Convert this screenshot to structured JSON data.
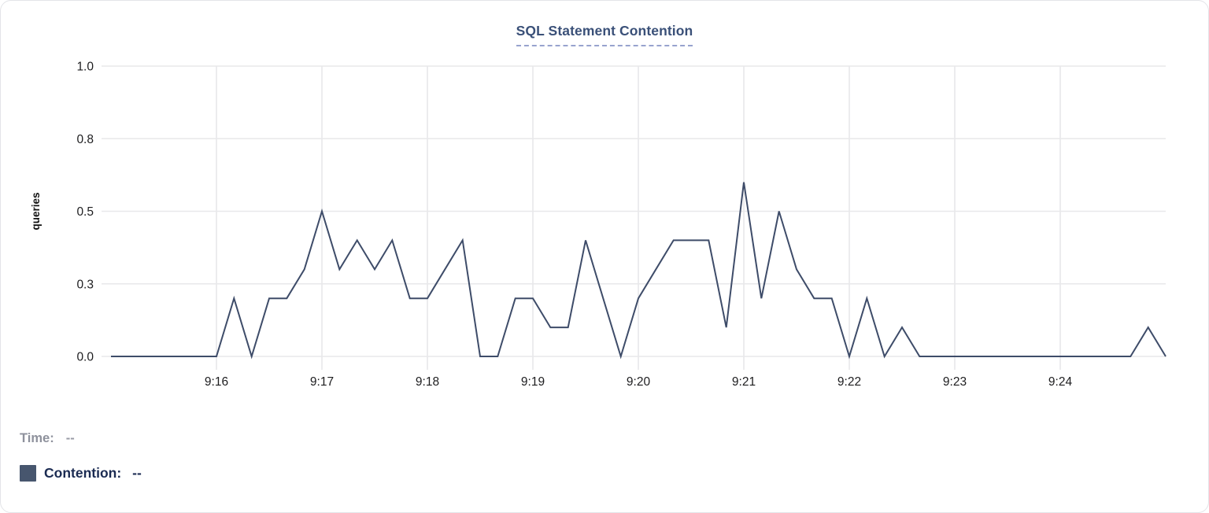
{
  "title": "SQL Statement Contention",
  "legend": {
    "time_label": "Time:",
    "time_value": "--",
    "series_label": "Contention:",
    "series_value": "--",
    "swatch_color": "#47566e"
  },
  "chart_data": {
    "type": "line",
    "title": "SQL Statement Contention",
    "xlabel": "",
    "ylabel": "queries",
    "ylim": [
      0,
      1
    ],
    "grid": true,
    "legend_position": "bottom-left",
    "y_ticks": [
      {
        "value": 0,
        "label": "0.0"
      },
      {
        "value": 0.25,
        "label": "0.3"
      },
      {
        "value": 0.5,
        "label": "0.5"
      },
      {
        "value": 0.75,
        "label": "0.8"
      },
      {
        "value": 1,
        "label": "1.0"
      }
    ],
    "x_tick_labels": [
      "9:16",
      "9:17",
      "9:18",
      "9:19",
      "9:20",
      "9:21",
      "9:22",
      "9:23",
      "9:24"
    ],
    "x_range": [
      "9:15:00",
      "9:25:00"
    ],
    "x": [
      "9:15:00",
      "9:15:10",
      "9:15:20",
      "9:15:30",
      "9:15:40",
      "9:15:50",
      "9:16:00",
      "9:16:10",
      "9:16:20",
      "9:16:30",
      "9:16:40",
      "9:16:50",
      "9:17:00",
      "9:17:10",
      "9:17:20",
      "9:17:30",
      "9:17:40",
      "9:17:50",
      "9:18:00",
      "9:18:10",
      "9:18:20",
      "9:18:30",
      "9:18:40",
      "9:18:50",
      "9:19:00",
      "9:19:10",
      "9:19:20",
      "9:19:30",
      "9:19:40",
      "9:19:50",
      "9:20:00",
      "9:20:10",
      "9:20:20",
      "9:20:30",
      "9:20:40",
      "9:20:50",
      "9:21:00",
      "9:21:10",
      "9:21:20",
      "9:21:30",
      "9:21:40",
      "9:21:50",
      "9:22:00",
      "9:22:10",
      "9:22:20",
      "9:22:30",
      "9:22:40",
      "9:22:50",
      "9:23:00",
      "9:23:10",
      "9:23:20",
      "9:23:30",
      "9:23:40",
      "9:23:50",
      "9:24:00",
      "9:24:10",
      "9:24:20",
      "9:24:30",
      "9:24:40",
      "9:24:50",
      "9:25:00"
    ],
    "series": [
      {
        "name": "Contention",
        "color": "#3e4c69",
        "values": [
          0,
          0,
          0,
          0,
          0,
          0,
          0,
          0.2,
          0,
          0.2,
          0.2,
          0.3,
          0.5,
          0.3,
          0.4,
          0.3,
          0.4,
          0.2,
          0.2,
          0.3,
          0.4,
          0,
          0,
          0.2,
          0.2,
          0.1,
          0.1,
          0.4,
          0.2,
          0,
          0.2,
          0.3,
          0.4,
          0.4,
          0.4,
          0.1,
          0.6,
          0.2,
          0.5,
          0.3,
          0.2,
          0.2,
          0,
          0.2,
          0,
          0.1,
          0,
          0,
          0,
          0,
          0,
          0,
          0,
          0,
          0,
          0,
          0,
          0,
          0,
          0.1,
          0
        ]
      }
    ],
    "colors": {
      "grid": "#e8e8ea",
      "tick_text": "#1d1d1f",
      "axis_title_text": "#111111"
    }
  }
}
